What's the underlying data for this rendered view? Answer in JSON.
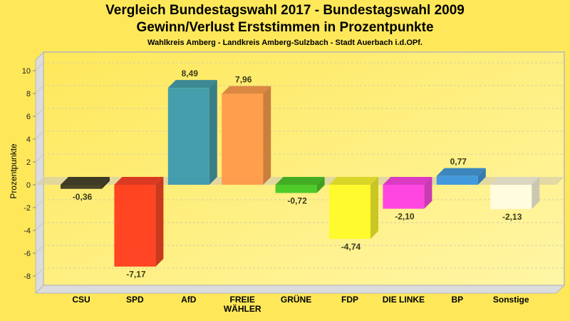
{
  "chart_data": {
    "type": "bar",
    "title": "Vergleich Bundestagswahl 2017 - Bundestagswahl 2009",
    "subtitle": "Gewinn/Verlust Erststimmen in Prozentpunkte",
    "subtitle2": "Wahlkreis Amberg - Landkreis Amberg-Sulzbach - Stadt Auerbach i.d.OPf.",
    "xlabel": "",
    "ylabel": "Prozentpunkte",
    "ylim": [
      -9.5,
      11
    ],
    "yticks": [
      10,
      8,
      6,
      4,
      2,
      0,
      -2,
      -4,
      -6,
      -8
    ],
    "grid": true,
    "categories": [
      [
        "CSU"
      ],
      [
        "SPD"
      ],
      [
        "AfD"
      ],
      [
        "FREIE",
        "WÄHLER"
      ],
      [
        "GRÜNE"
      ],
      [
        "FDP"
      ],
      [
        "DIE LINKE"
      ],
      [
        "BP"
      ],
      [
        "Sonstige"
      ]
    ],
    "values": [
      -0.36,
      -7.17,
      8.49,
      7.96,
      -0.72,
      -4.74,
      -2.1,
      0.77,
      -2.13
    ],
    "value_labels": [
      "-0,36",
      "-7,17",
      "8,49",
      "7,96",
      "-0,72",
      "-4,74",
      "-2,10",
      "0,77",
      "-2,13"
    ],
    "colors": [
      "#3D3A24",
      "#FF3B1E",
      "#3A9AB0",
      "#FF9A4A",
      "#44C824",
      "#FFFA28",
      "#FF3CE6",
      "#3A96E2",
      "#FFFCE4"
    ]
  }
}
